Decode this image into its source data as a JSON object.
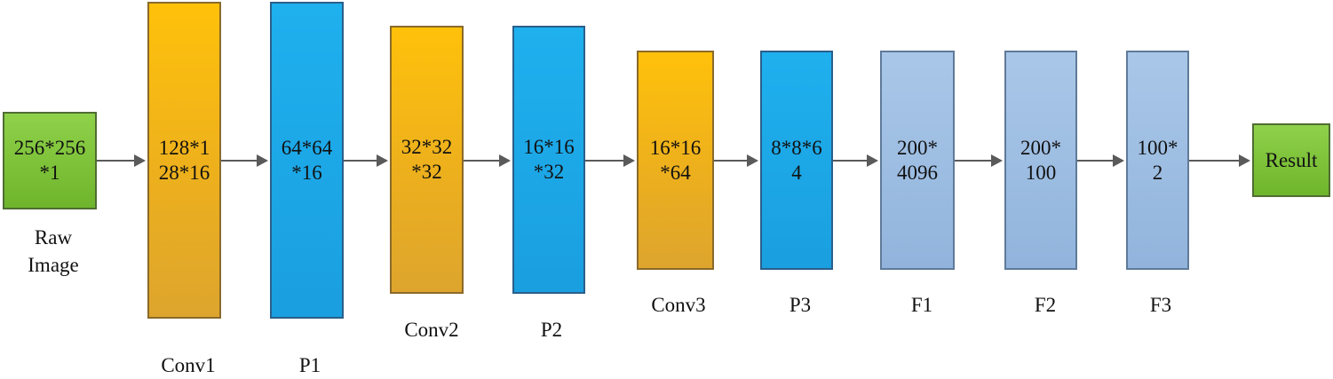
{
  "nodes": [
    {
      "lines": [
        "256*256",
        "*1"
      ],
      "caption": [
        "Raw",
        "Image"
      ]
    },
    {
      "lines": [
        "128*1",
        "28*16"
      ],
      "caption": [
        "Conv1"
      ]
    },
    {
      "lines": [
        "64*64",
        "*16"
      ],
      "caption": [
        "P1"
      ]
    },
    {
      "lines": [
        "32*32",
        "*32"
      ],
      "caption": [
        "Conv2"
      ]
    },
    {
      "lines": [
        "16*16",
        "*32"
      ],
      "caption": [
        "P2"
      ]
    },
    {
      "lines": [
        "16*16",
        "*64"
      ],
      "caption": [
        "Conv3"
      ]
    },
    {
      "lines": [
        "8*8*6",
        "4"
      ],
      "caption": [
        "P3"
      ]
    },
    {
      "lines": [
        "200*",
        "4096"
      ],
      "caption": [
        "F1"
      ]
    },
    {
      "lines": [
        "200*",
        "100"
      ],
      "caption": [
        "F2"
      ]
    },
    {
      "lines": [
        "100*",
        "2"
      ],
      "caption": [
        "F3"
      ]
    },
    {
      "lines": [
        "Result"
      ],
      "caption": []
    }
  ],
  "colors": {
    "input_output": "#7ac143",
    "convolution": "#fbbf1a",
    "pooling": "#1ea8e8",
    "fully_connected": "#a3c0e4",
    "arrow": "#5a5a5a"
  }
}
